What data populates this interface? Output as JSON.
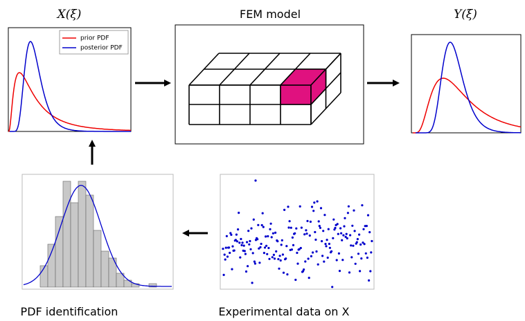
{
  "input_panel": {
    "title": "X(ξ)",
    "legend": [
      "prior PDF",
      "posterior PDF"
    ]
  },
  "model_panel": {
    "title": "FEM model"
  },
  "output_panel": {
    "title": "Y(ξ)"
  },
  "identification_panel": {
    "caption": "PDF identification"
  },
  "experiment_panel": {
    "caption": "Experimental data on X"
  }
}
